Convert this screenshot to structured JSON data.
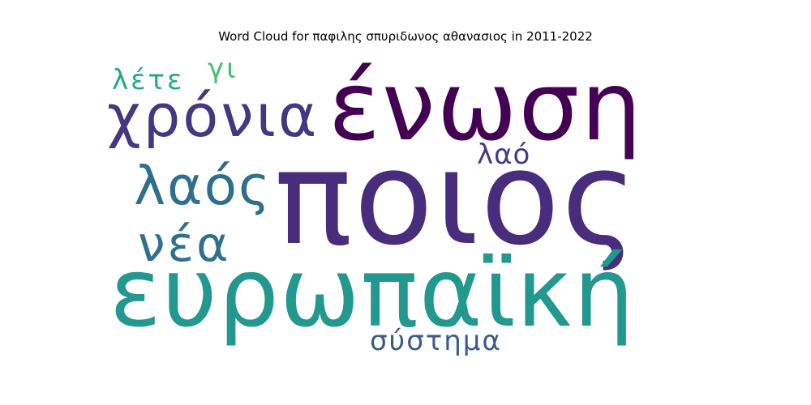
{
  "chart_data": {
    "type": "wordcloud",
    "title": "Word Cloud for παφιλης σπυριδωνος αθανασιος in 2011-2022",
    "words": [
      {
        "text": "ποιος",
        "weight": 100,
        "color": "#472d7b"
      },
      {
        "text": "ένωση",
        "weight": 88,
        "color": "#440154"
      },
      {
        "text": "ευρωπαϊκή",
        "weight": 82,
        "color": "#22988e"
      },
      {
        "text": "χρόνια",
        "weight": 52,
        "color": "#453781"
      },
      {
        "text": "λαός",
        "weight": 48,
        "color": "#2e6e8e"
      },
      {
        "text": "νέα",
        "weight": 44,
        "color": "#30708e"
      },
      {
        "text": "σύστημα",
        "weight": 24,
        "color": "#3b5a8c"
      },
      {
        "text": "λέτε",
        "weight": 24,
        "color": "#24a883"
      },
      {
        "text": "γι",
        "weight": 22,
        "color": "#44bf70"
      },
      {
        "text": "λαό",
        "weight": 22,
        "color": "#443a83"
      }
    ]
  }
}
